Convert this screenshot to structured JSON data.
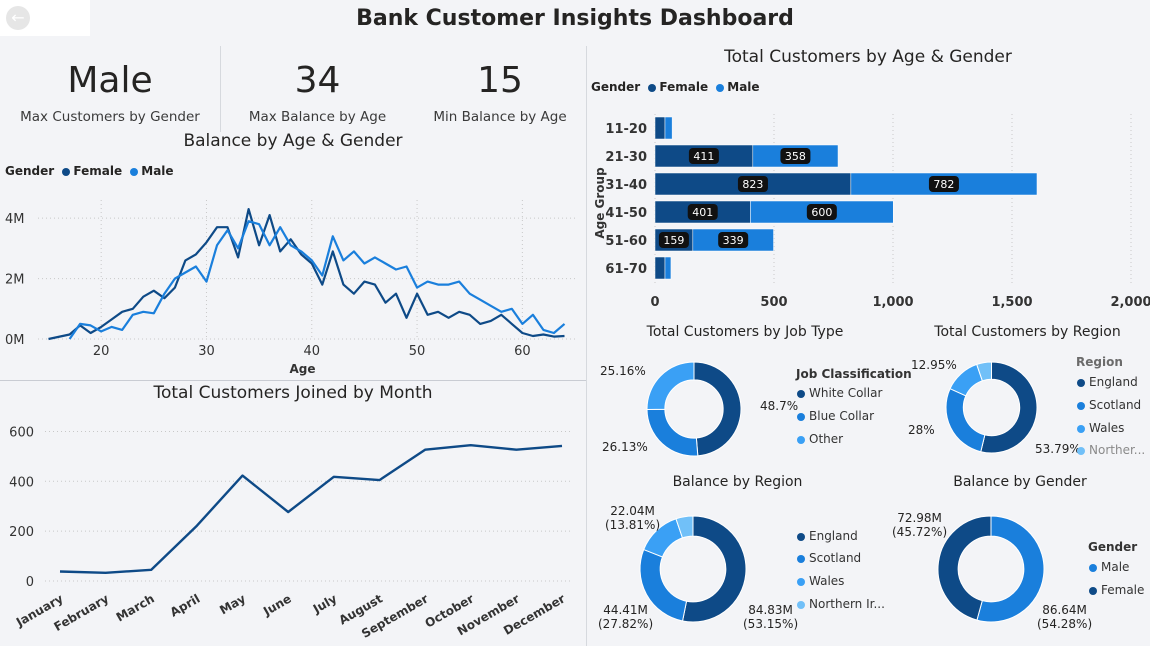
{
  "title": "Bank Customer Insights Dashboard",
  "colors": {
    "female": "#0e4a87",
    "male": "#1a7fdc",
    "dark": "#0e4a87",
    "mid": "#1a7fdc",
    "light": "#3aa0f5",
    "lightest": "#71c0f8"
  },
  "kpis": [
    {
      "value": "Male",
      "label": "Max Customers by Gender"
    },
    {
      "value": "34",
      "label": "Max Balance by Age"
    },
    {
      "value": "15",
      "label": "Min Balance by Age"
    }
  ],
  "legend_gender": {
    "title": "Gender",
    "female": "Female",
    "male": "Male"
  },
  "chart_data": [
    {
      "id": "balance_by_age",
      "type": "line",
      "title": "Balance by Age & Gender",
      "xlabel": "Age",
      "ylabel": "",
      "xlim": [
        14,
        65
      ],
      "ylim": [
        0,
        4600000
      ],
      "xticks": [
        "20",
        "30",
        "40",
        "50",
        "60"
      ],
      "yticks": [
        "0M",
        "2M",
        "4M"
      ],
      "series": [
        {
          "name": "Female",
          "x": [
            15,
            17,
            18,
            19,
            20,
            21,
            22,
            23,
            24,
            25,
            26,
            27,
            28,
            29,
            30,
            31,
            32,
            33,
            34,
            35,
            36,
            37,
            38,
            39,
            40,
            41,
            42,
            43,
            44,
            45,
            46,
            47,
            48,
            49,
            50,
            51,
            52,
            53,
            54,
            55,
            56,
            57,
            58,
            59,
            60,
            61,
            62,
            63,
            64
          ],
          "y": [
            0,
            150000,
            450000,
            200000,
            400000,
            650000,
            900000,
            1000000,
            1400000,
            1600000,
            1350000,
            1700000,
            2600000,
            2800000,
            3200000,
            3700000,
            3700000,
            2700000,
            4300000,
            3100000,
            4100000,
            2900000,
            3300000,
            2800000,
            2500000,
            1800000,
            2900000,
            1800000,
            1500000,
            1900000,
            1800000,
            1200000,
            1500000,
            700000,
            1500000,
            800000,
            900000,
            700000,
            900000,
            800000,
            500000,
            600000,
            800000,
            500000,
            200000,
            100000,
            150000,
            80000,
            100000
          ]
        },
        {
          "name": "Male",
          "x": [
            17,
            18,
            19,
            20,
            21,
            22,
            23,
            24,
            25,
            26,
            27,
            28,
            29,
            30,
            31,
            32,
            33,
            34,
            35,
            36,
            37,
            38,
            39,
            40,
            41,
            42,
            43,
            44,
            45,
            46,
            47,
            48,
            49,
            50,
            51,
            52,
            53,
            54,
            55,
            56,
            57,
            58,
            59,
            60,
            61,
            62,
            63,
            64
          ],
          "y": [
            0,
            500000,
            450000,
            250000,
            400000,
            300000,
            800000,
            900000,
            850000,
            1500000,
            2000000,
            2200000,
            2400000,
            1900000,
            3100000,
            3600000,
            3000000,
            3900000,
            3800000,
            3100000,
            3700000,
            3100000,
            2900000,
            2600000,
            2100000,
            3400000,
            2600000,
            2900000,
            2500000,
            2700000,
            2500000,
            2300000,
            2400000,
            1700000,
            1900000,
            1800000,
            1800000,
            1900000,
            1500000,
            1300000,
            1100000,
            900000,
            1000000,
            500000,
            800000,
            300000,
            200000,
            500000
          ]
        }
      ]
    },
    {
      "id": "customers_by_month",
      "type": "line",
      "title": "Total Customers Joined by Month",
      "categories": [
        "January",
        "February",
        "March",
        "April",
        "May",
        "June",
        "July",
        "August",
        "September",
        "October",
        "November",
        "December"
      ],
      "values": [
        38,
        33,
        45,
        222,
        423,
        277,
        418,
        405,
        527,
        545,
        527,
        542
      ],
      "ylim": [
        0,
        650
      ],
      "yticks": [
        "0",
        "200",
        "400",
        "600"
      ]
    },
    {
      "id": "customers_by_age_gender",
      "type": "bar",
      "orientation": "horizontal",
      "stacked": true,
      "title": "Total Customers by Age & Gender",
      "ylabel": "Age Group",
      "categories": [
        "11-20",
        "21-30",
        "31-40",
        "41-50",
        "51-60",
        "61-70"
      ],
      "series": [
        {
          "name": "Female",
          "values": [
            42,
            411,
            823,
            401,
            159,
            42
          ]
        },
        {
          "name": "Male",
          "values": [
            30,
            358,
            782,
            600,
            339,
            25
          ]
        }
      ],
      "data_labels": {
        "Female": [
          "",
          "411",
          "823",
          "401",
          "159",
          ""
        ],
        "Male": [
          "",
          "358",
          "782",
          "600",
          "339",
          ""
        ]
      },
      "xlim": [
        0,
        2000
      ],
      "xticks": [
        "0",
        "500",
        "1,000",
        "1,500",
        "2,000"
      ]
    },
    {
      "id": "customers_by_job",
      "type": "pie",
      "donut": true,
      "title": "Total Customers by Job Type",
      "legend_title": "Job Classification",
      "categories": [
        "White Collar",
        "Blue Collar",
        "Other"
      ],
      "values": [
        48.7,
        26.13,
        25.16
      ],
      "labels": [
        "48.7%",
        "26.13%",
        "25.16%"
      ]
    },
    {
      "id": "customers_by_region",
      "type": "pie",
      "donut": true,
      "title": "Total Customers by Region",
      "legend_title": "Region",
      "categories": [
        "England",
        "Scotland",
        "Wales",
        "Northern Ireland"
      ],
      "legend_labels": [
        "England",
        "Scotland",
        "Wales",
        "Norther..."
      ],
      "values": [
        53.79,
        28,
        12.95,
        5.26
      ],
      "labels": [
        "53.79%",
        "28%",
        "12.95%",
        ""
      ]
    },
    {
      "id": "balance_by_region",
      "type": "pie",
      "donut": true,
      "title": "Balance by Region",
      "categories": [
        "England",
        "Scotland",
        "Wales",
        "Northern Ireland"
      ],
      "legend_labels": [
        "England",
        "Scotland",
        "Wales",
        "Northern Ir..."
      ],
      "values": [
        84.83,
        44.41,
        22.04,
        8.3
      ],
      "labels": [
        [
          "84.83M",
          "(53.15%)"
        ],
        [
          "44.41M",
          "(27.82%)"
        ],
        [
          "22.04M",
          "(13.81%)"
        ],
        [
          "",
          ""
        ]
      ]
    },
    {
      "id": "balance_by_gender",
      "type": "pie",
      "donut": true,
      "title": "Balance by Gender",
      "legend_title": "Gender",
      "categories": [
        "Male",
        "Female"
      ],
      "values": [
        86.64,
        72.98
      ],
      "labels": [
        [
          "86.64M",
          "(54.28%)"
        ],
        [
          "72.98M",
          "(45.72%)"
        ]
      ]
    }
  ]
}
